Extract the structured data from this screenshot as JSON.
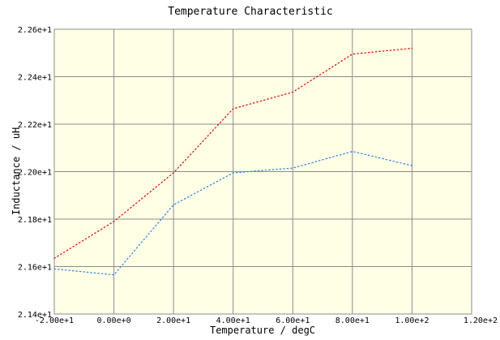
{
  "chart_data": {
    "type": "line",
    "title": "Temperature Characteristic",
    "xlabel": "Temperature / degC",
    "ylabel": "Inductance / uH",
    "xlim": [
      -20,
      120
    ],
    "ylim": [
      21.4,
      22.6
    ],
    "x_ticks": [
      -20,
      0,
      20,
      40,
      60,
      80,
      100,
      120
    ],
    "x_tick_labels": [
      "-2.00e+1",
      "0.00e+0",
      "2.00e+1",
      "4.00e+1",
      "6.00e+1",
      "8.00e+1",
      "1.00e+2",
      "1.20e+2"
    ],
    "y_ticks": [
      21.4,
      21.6,
      21.8,
      22.0,
      22.2,
      22.4,
      22.6
    ],
    "y_tick_labels": [
      "2.14e+1",
      "2.16e+1",
      "2.18e+1",
      "2.20e+1",
      "2.22e+1",
      "2.24e+1",
      "2.26e+1"
    ],
    "grid": true,
    "colors": {
      "plot_background": "#ffffe6",
      "grid": "#8c8c8c",
      "series_red": "#e60000",
      "series_blue": "#2a7fe6"
    },
    "series": [
      {
        "color": "#e60000",
        "x": [
          -20,
          0,
          20,
          40,
          60,
          80,
          100
        ],
        "y": [
          21.635,
          21.79,
          21.995,
          22.265,
          22.335,
          22.495,
          22.52
        ]
      },
      {
        "color": "#2a7fe6",
        "x": [
          -20,
          0,
          20,
          40,
          60,
          80,
          100
        ],
        "y": [
          21.59,
          21.565,
          21.86,
          21.995,
          22.015,
          22.085,
          22.025
        ]
      }
    ]
  }
}
